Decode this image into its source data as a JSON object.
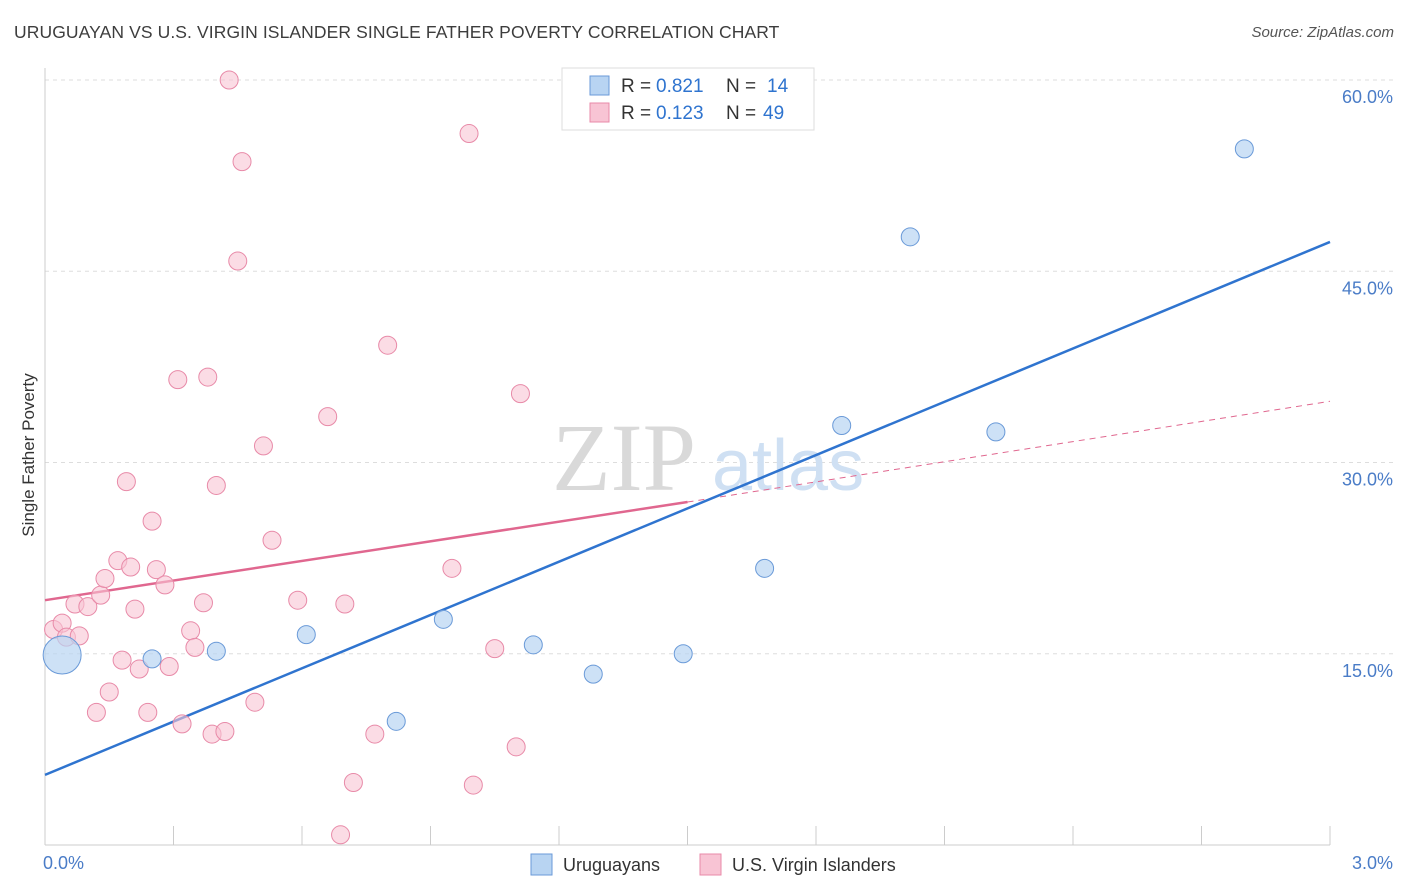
{
  "title": "URUGUAYAN VS U.S. VIRGIN ISLANDER SINGLE FATHER POVERTY CORRELATION CHART",
  "source": "Source: ZipAtlas.com",
  "watermark": {
    "zip": "ZIP",
    "atlas": "atlas"
  },
  "colors": {
    "blue_fill": "#b8d4f2",
    "blue_stroke": "#6a9ad8",
    "blue_line": "#2f74cf",
    "pink_fill": "#f8c4d4",
    "pink_stroke": "#e88aa8",
    "pink_line": "#e0678f",
    "tick_text": "#4a7cc7",
    "grid": "#dddddd"
  },
  "chart_data": {
    "type": "scatter",
    "ylabel": "Single Father Poverty",
    "xlim": [
      0.0,
      3.0
    ],
    "ylim": [
      0.0,
      60.0
    ],
    "x_tick_labels": [
      "0.0%",
      "3.0%"
    ],
    "y_ticks": [
      15,
      30,
      45,
      60
    ],
    "y_tick_labels": [
      "15.0%",
      "30.0%",
      "45.0%",
      "60.0%"
    ],
    "legend": [
      {
        "r_label": "R =",
        "r_value": "0.821",
        "n_label": "N =",
        "n_value": "14"
      },
      {
        "r_label": "R =",
        "r_value": "0.123",
        "n_label": "N =",
        "n_value": "49"
      }
    ],
    "series": [
      {
        "name": "Uruguayans",
        "points": [
          {
            "x": 0.04,
            "y": 14.9,
            "big": true
          },
          {
            "x": 0.25,
            "y": 14.6
          },
          {
            "x": 0.4,
            "y": 15.2
          },
          {
            "x": 0.61,
            "y": 16.5
          },
          {
            "x": 0.82,
            "y": 9.7
          },
          {
            "x": 0.93,
            "y": 17.7
          },
          {
            "x": 1.14,
            "y": 15.7
          },
          {
            "x": 1.28,
            "y": 13.4
          },
          {
            "x": 1.49,
            "y": 15.0
          },
          {
            "x": 1.68,
            "y": 21.7
          },
          {
            "x": 1.86,
            "y": 32.9
          },
          {
            "x": 2.02,
            "y": 47.7
          },
          {
            "x": 2.22,
            "y": 32.4
          },
          {
            "x": 2.8,
            "y": 54.6
          }
        ],
        "trend": {
          "x0": 0.0,
          "y0": 5.5,
          "x1": 3.0,
          "y1": 47.3
        }
      },
      {
        "name": "U.S. Virgin Islanders",
        "points": [
          {
            "x": 0.02,
            "y": 16.9
          },
          {
            "x": 0.04,
            "y": 17.4
          },
          {
            "x": 0.05,
            "y": 16.3
          },
          {
            "x": 0.07,
            "y": 18.9
          },
          {
            "x": 0.08,
            "y": 16.4
          },
          {
            "x": 0.1,
            "y": 18.7
          },
          {
            "x": 0.12,
            "y": 10.4
          },
          {
            "x": 0.13,
            "y": 19.6
          },
          {
            "x": 0.14,
            "y": 20.9
          },
          {
            "x": 0.15,
            "y": 12.0
          },
          {
            "x": 0.17,
            "y": 22.3
          },
          {
            "x": 0.19,
            "y": 28.5
          },
          {
            "x": 0.2,
            "y": 21.8
          },
          {
            "x": 0.21,
            "y": 18.5
          },
          {
            "x": 0.22,
            "y": 13.8
          },
          {
            "x": 0.24,
            "y": 10.4
          },
          {
            "x": 0.25,
            "y": 25.4
          },
          {
            "x": 0.26,
            "y": 21.6
          },
          {
            "x": 0.28,
            "y": 20.4
          },
          {
            "x": 0.29,
            "y": 14.0
          },
          {
            "x": 0.31,
            "y": 36.5
          },
          {
            "x": 0.32,
            "y": 9.5
          },
          {
            "x": 0.34,
            "y": 16.8
          },
          {
            "x": 0.35,
            "y": 15.5
          },
          {
            "x": 0.37,
            "y": 19.0
          },
          {
            "x": 0.38,
            "y": 36.7
          },
          {
            "x": 0.39,
            "y": 8.7
          },
          {
            "x": 0.4,
            "y": 28.2
          },
          {
            "x": 0.42,
            "y": 8.9
          },
          {
            "x": 0.43,
            "y": 60.0
          },
          {
            "x": 0.45,
            "y": 45.8
          },
          {
            "x": 0.46,
            "y": 53.6
          },
          {
            "x": 0.49,
            "y": 11.2
          },
          {
            "x": 0.51,
            "y": 31.3
          },
          {
            "x": 0.53,
            "y": 23.9
          },
          {
            "x": 0.59,
            "y": 19.2
          },
          {
            "x": 0.66,
            "y": 33.6
          },
          {
            "x": 0.69,
            "y": 0.8
          },
          {
            "x": 0.7,
            "y": 18.9
          },
          {
            "x": 0.72,
            "y": 4.9
          },
          {
            "x": 0.77,
            "y": 8.7
          },
          {
            "x": 0.8,
            "y": 39.2
          },
          {
            "x": 0.95,
            "y": 21.7
          },
          {
            "x": 0.99,
            "y": 55.8
          },
          {
            "x": 1.0,
            "y": 4.7
          },
          {
            "x": 1.05,
            "y": 15.4
          },
          {
            "x": 1.1,
            "y": 7.7
          },
          {
            "x": 1.11,
            "y": 35.4
          },
          {
            "x": 0.18,
            "y": 14.5
          }
        ],
        "trend": {
          "x0": 0.0,
          "y0": 19.2,
          "x1": 1.5,
          "y1": 26.9,
          "dash_x1": 3.0,
          "dash_y1": 34.8
        }
      }
    ]
  }
}
